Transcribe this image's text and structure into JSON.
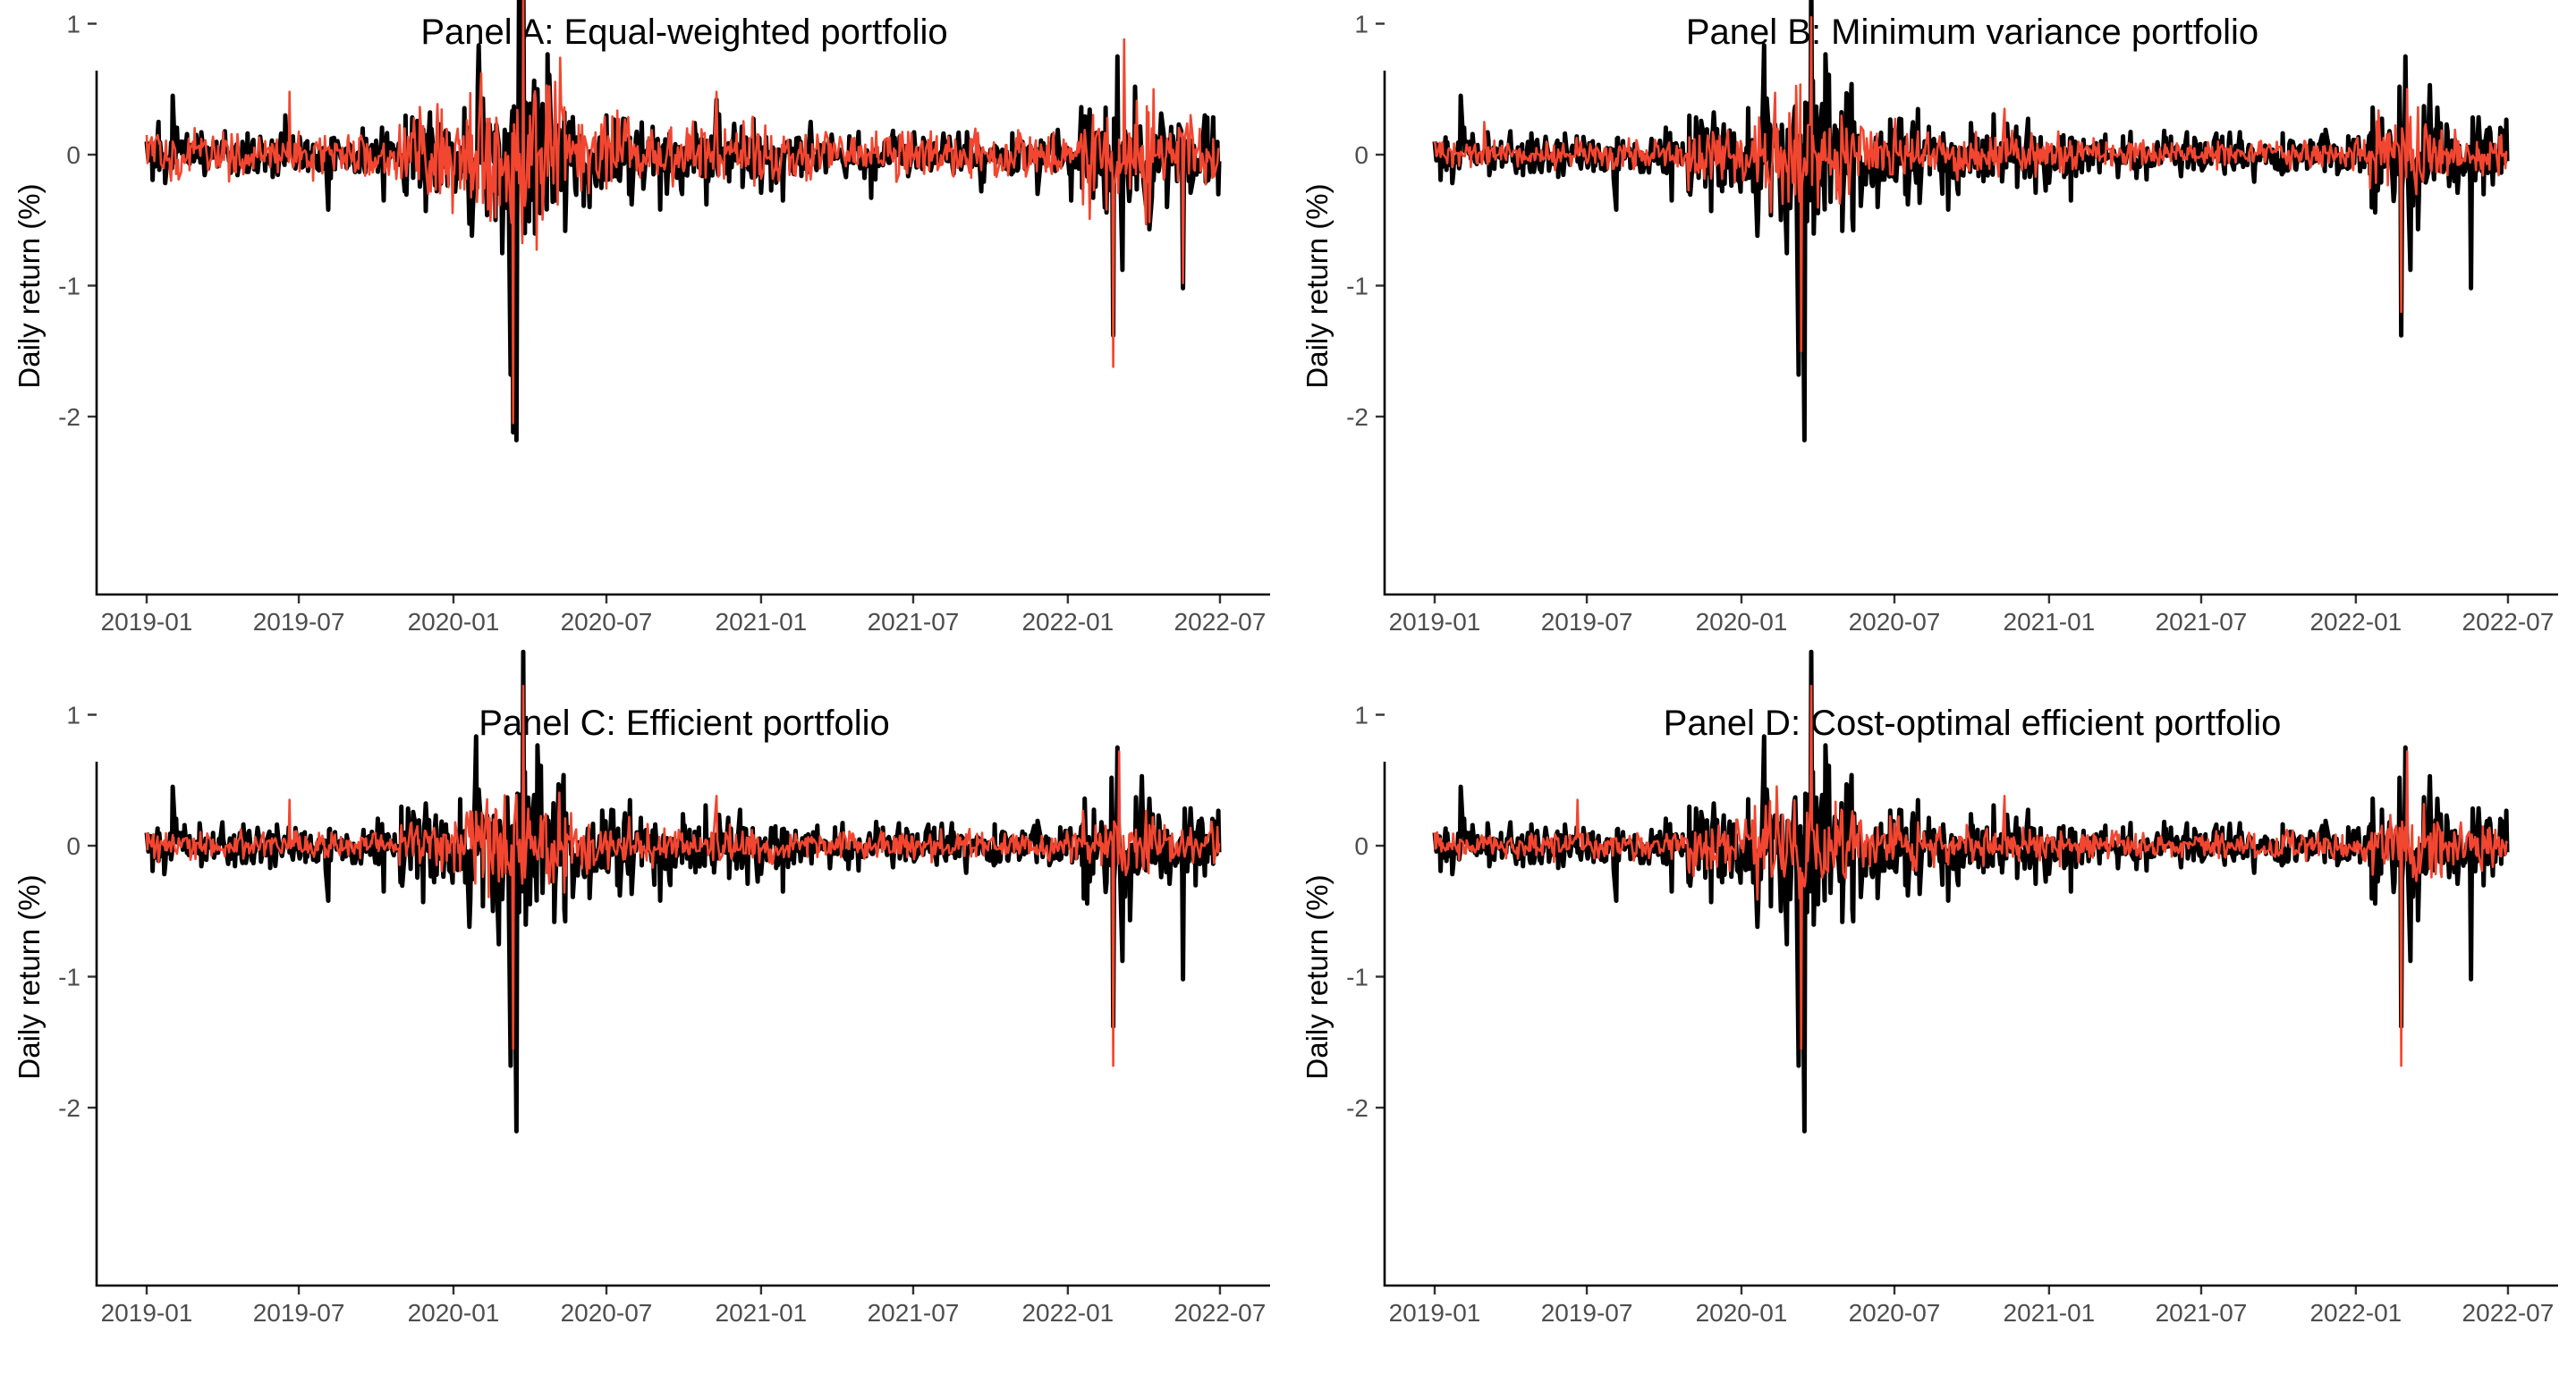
{
  "colors": {
    "series_black": "#000000",
    "series_red": "#F24630",
    "tick_text": "#4d4d4d"
  },
  "chart_data": [
    {
      "type": "line",
      "title": "Panel A: Equal-weighted portfolio",
      "xlabel": "",
      "ylabel": "Daily return (%)",
      "xlim": [
        "2019-01-01",
        "2022-06-30"
      ],
      "ylim": [
        -2.2,
        1.5
      ],
      "xticks": [
        "2019-01",
        "2019-07",
        "2020-01",
        "2020-07",
        "2021-01",
        "2021-07",
        "2022-01",
        "2022-07"
      ],
      "yticks": [
        -2,
        -1,
        0,
        1
      ],
      "legend": "none",
      "grid": false,
      "series": [
        {
          "color": "#000000",
          "line_width": "thick",
          "points": [
            [
              "2019-01-01",
              0.1
            ],
            [
              "2019-01-15",
              0.25
            ],
            [
              "2019-02-01",
              0.45
            ],
            [
              "2019-03-01",
              0.15
            ],
            [
              "2019-04-01",
              0.1
            ],
            [
              "2019-06-15",
              0.3
            ],
            [
              "2019-08-05",
              -0.42
            ],
            [
              "2019-09-15",
              0.2
            ],
            [
              "2019-10-10",
              -0.35
            ],
            [
              "2019-12-01",
              0.15
            ],
            [
              "2020-02-25",
              -0.3
            ],
            [
              "2020-03-09",
              -1.68
            ],
            [
              "2020-03-12",
              -2.12
            ],
            [
              "2020-03-16",
              -2.18
            ],
            [
              "2020-03-19",
              1.2
            ],
            [
              "2020-03-24",
              1.48
            ],
            [
              "2020-03-26",
              -0.6
            ],
            [
              "2020-04-10",
              0.5
            ],
            [
              "2020-05-01",
              -0.35
            ],
            [
              "2020-06-11",
              -0.4
            ],
            [
              "2020-07-01",
              0.3
            ],
            [
              "2020-09-03",
              -0.42
            ],
            [
              "2020-10-28",
              -0.38
            ],
            [
              "2020-11-09",
              0.42
            ],
            [
              "2021-01-27",
              -0.35
            ],
            [
              "2021-03-01",
              0.25
            ],
            [
              "2021-05-12",
              -0.33
            ],
            [
              "2021-09-20",
              -0.28
            ],
            [
              "2021-11-26",
              -0.3
            ],
            [
              "2022-01-05",
              -0.35
            ],
            [
              "2022-02-24",
              -1.38
            ],
            [
              "2022-03-01",
              0.75
            ],
            [
              "2022-03-07",
              -0.88
            ],
            [
              "2022-04-29",
              -0.4
            ],
            [
              "2022-05-18",
              -1.02
            ],
            [
              "2022-06-13",
              0.3
            ],
            [
              "2022-06-30",
              -0.05
            ]
          ]
        },
        {
          "color": "#F24630",
          "line_width": "thin",
          "points": [
            [
              "2019-01-01",
              0.15
            ],
            [
              "2019-06-20",
              0.48
            ],
            [
              "2020-03-12",
              -2.05
            ],
            [
              "2020-03-24",
              1.28
            ],
            [
              "2020-04-06",
              0.45
            ],
            [
              "2020-11-09",
              0.48
            ],
            [
              "2022-02-24",
              -1.62
            ],
            [
              "2022-03-09",
              0.88
            ],
            [
              "2022-05-18",
              -0.98
            ],
            [
              "2022-06-30",
              0.05
            ]
          ]
        }
      ]
    },
    {
      "type": "line",
      "title": "Panel B: Minimum variance portfolio",
      "xlabel": "",
      "ylabel": "Daily return (%)",
      "xlim": [
        "2019-01-01",
        "2022-06-30"
      ],
      "ylim": [
        -2.2,
        1.5
      ],
      "xticks": [
        "2019-01",
        "2019-07",
        "2020-01",
        "2020-07",
        "2021-01",
        "2021-07",
        "2022-01",
        "2022-07"
      ],
      "yticks": [
        -2,
        -1,
        0,
        1
      ],
      "legend": "none",
      "grid": false,
      "series": [
        {
          "color": "#000000",
          "line_width": "thick",
          "points": [
            [
              "2019-01-01",
              0.1
            ],
            [
              "2019-02-01",
              0.45
            ],
            [
              "2019-08-05",
              -0.42
            ],
            [
              "2019-10-10",
              -0.35
            ],
            [
              "2020-03-09",
              -1.68
            ],
            [
              "2020-03-16",
              -2.18
            ],
            [
              "2020-03-24",
              1.48
            ],
            [
              "2020-06-11",
              -0.4
            ],
            [
              "2020-09-03",
              -0.42
            ],
            [
              "2021-01-27",
              -0.35
            ],
            [
              "2022-02-24",
              -1.38
            ],
            [
              "2022-03-01",
              0.75
            ],
            [
              "2022-03-07",
              -0.88
            ],
            [
              "2022-05-18",
              -1.02
            ],
            [
              "2022-06-30",
              -0.05
            ]
          ]
        },
        {
          "color": "#F24630",
          "line_width": "thin",
          "points": [
            [
              "2019-01-01",
              0.1
            ],
            [
              "2019-03-01",
              0.25
            ],
            [
              "2020-03-12",
              -1.5
            ],
            [
              "2020-03-24",
              1.05
            ],
            [
              "2020-11-09",
              0.35
            ],
            [
              "2022-02-24",
              -1.2
            ],
            [
              "2022-03-03",
              0.5
            ],
            [
              "2022-06-30",
              0.02
            ]
          ]
        }
      ]
    },
    {
      "type": "line",
      "title": "Panel C: Efficient portfolio",
      "xlabel": "",
      "ylabel": "Daily return (%)",
      "xlim": [
        "2019-01-01",
        "2022-06-30"
      ],
      "ylim": [
        -2.2,
        1.5
      ],
      "xticks": [
        "2019-01",
        "2019-07",
        "2020-01",
        "2020-07",
        "2021-01",
        "2021-07",
        "2022-01",
        "2022-07"
      ],
      "yticks": [
        -2,
        -1,
        0,
        1
      ],
      "legend": "none",
      "grid": false,
      "series": [
        {
          "color": "#000000",
          "line_width": "thick",
          "points": [
            [
              "2019-01-01",
              0.1
            ],
            [
              "2019-02-01",
              0.45
            ],
            [
              "2019-08-05",
              -0.42
            ],
            [
              "2019-10-10",
              -0.35
            ],
            [
              "2020-03-09",
              -1.68
            ],
            [
              "2020-03-16",
              -2.18
            ],
            [
              "2020-03-24",
              1.48
            ],
            [
              "2020-06-11",
              -0.4
            ],
            [
              "2020-09-03",
              -0.42
            ],
            [
              "2021-01-27",
              -0.35
            ],
            [
              "2022-02-24",
              -1.38
            ],
            [
              "2022-03-01",
              0.75
            ],
            [
              "2022-03-07",
              -0.88
            ],
            [
              "2022-05-18",
              -1.02
            ],
            [
              "2022-06-30",
              -0.05
            ]
          ]
        },
        {
          "color": "#F24630",
          "line_width": "thin",
          "points": [
            [
              "2019-01-01",
              0.1
            ],
            [
              "2019-06-20",
              0.35
            ],
            [
              "2020-03-12",
              -1.55
            ],
            [
              "2020-03-24",
              1.22
            ],
            [
              "2020-11-09",
              0.38
            ],
            [
              "2022-02-24",
              -1.68
            ],
            [
              "2022-03-03",
              0.72
            ],
            [
              "2022-06-30",
              0.02
            ]
          ]
        }
      ]
    },
    {
      "type": "line",
      "title": "Panel D: Cost-optimal efficient portfolio",
      "xlabel": "",
      "ylabel": "Daily return (%)",
      "xlim": [
        "2019-01-01",
        "2022-06-30"
      ],
      "ylim": [
        -2.2,
        1.5
      ],
      "xticks": [
        "2019-01",
        "2019-07",
        "2020-01",
        "2020-07",
        "2021-01",
        "2021-07",
        "2022-01",
        "2022-07"
      ],
      "yticks": [
        -2,
        -1,
        0,
        1
      ],
      "legend": "none",
      "grid": false,
      "series": [
        {
          "color": "#000000",
          "line_width": "thick",
          "points": [
            [
              "2019-01-01",
              0.1
            ],
            [
              "2019-02-01",
              0.45
            ],
            [
              "2019-08-05",
              -0.42
            ],
            [
              "2019-10-10",
              -0.35
            ],
            [
              "2020-03-09",
              -1.68
            ],
            [
              "2020-03-16",
              -2.18
            ],
            [
              "2020-03-24",
              1.48
            ],
            [
              "2020-06-11",
              -0.4
            ],
            [
              "2020-09-03",
              -0.42
            ],
            [
              "2021-01-27",
              -0.35
            ],
            [
              "2022-02-24",
              -1.38
            ],
            [
              "2022-03-01",
              0.75
            ],
            [
              "2022-03-07",
              -0.88
            ],
            [
              "2022-05-18",
              -1.02
            ],
            [
              "2022-06-30",
              -0.05
            ]
          ]
        },
        {
          "color": "#F24630",
          "line_width": "thin",
          "points": [
            [
              "2019-01-01",
              0.1
            ],
            [
              "2019-06-20",
              0.35
            ],
            [
              "2020-03-12",
              -1.55
            ],
            [
              "2020-03-24",
              1.22
            ],
            [
              "2020-11-09",
              0.38
            ],
            [
              "2022-02-24",
              -1.68
            ],
            [
              "2022-03-03",
              0.72
            ],
            [
              "2022-06-30",
              0.02
            ]
          ]
        }
      ]
    }
  ]
}
